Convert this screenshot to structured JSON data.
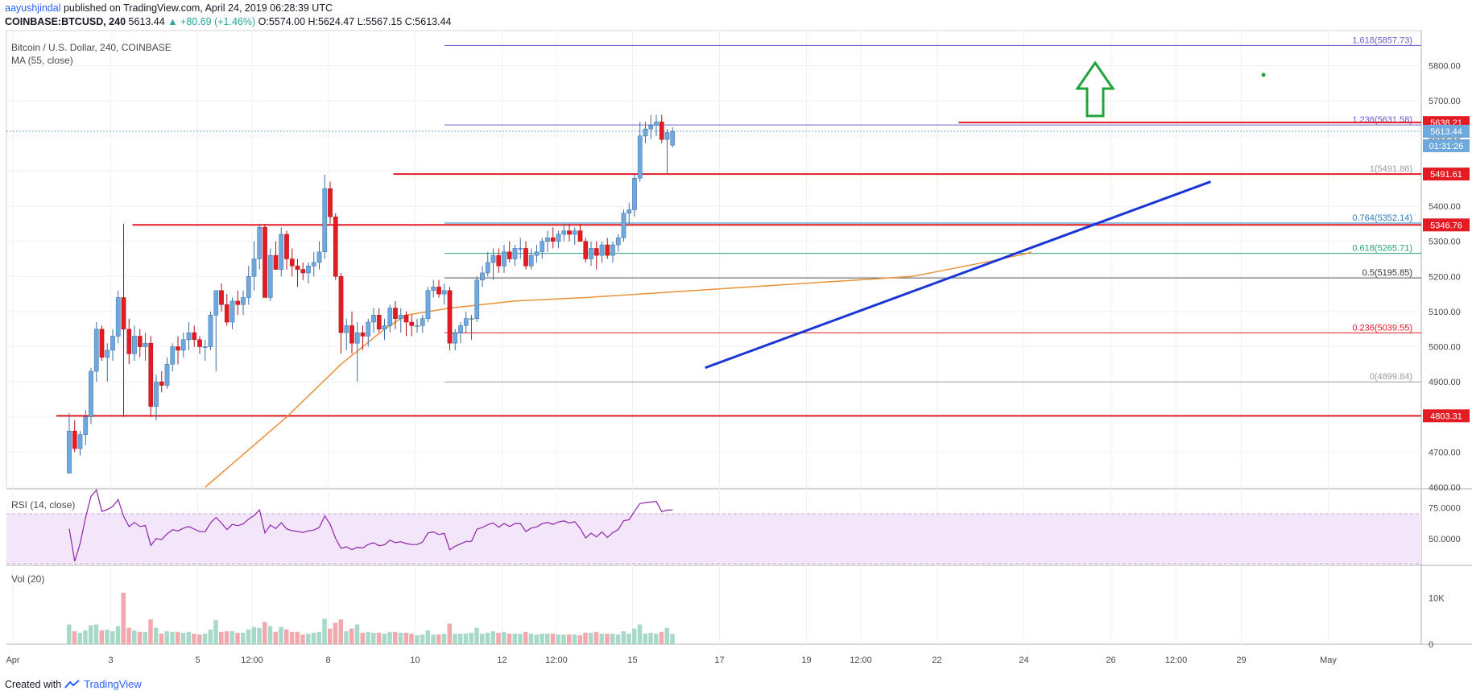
{
  "header": {
    "author": "aayushjindal",
    "published": "published on TradingView.com, April 24, 2019 06:28:39 UTC",
    "symbol": "COINBASE:BTCUSD, 240",
    "last": "5613.44",
    "change": "▲ +80.69 (+1.46%)",
    "o_label": "O:",
    "o": "5574.00",
    "h_label": "H:",
    "h": "5624.47",
    "l_label": "L:",
    "l": "5567.15",
    "c_label": "C:",
    "c": "5613.44"
  },
  "main_legend": {
    "title": "Bitcoin / U.S. Dollar, 240, COINBASE",
    "ma": "MA (55, close)"
  },
  "rsi_legend": "RSI (14, close)",
  "vol_legend": "Vol (20)",
  "footer": {
    "created": "Created with",
    "brand": "TradingView"
  },
  "colors": {
    "up": "#6fa8dc",
    "down": "#e31b23",
    "ma": "#e8913a",
    "trend": "#1a35d6",
    "resistance": "#e31b23",
    "fib": "#9b9b9b",
    "arrow": "#21a33a",
    "rsi": "#8e24aa"
  },
  "chart_data": {
    "type": "candlestick",
    "timeframe": "240",
    "price_axis": {
      "ylim": [
        4600,
        5900
      ],
      "ticks": [
        4600,
        4700,
        4800,
        4900,
        5000,
        5100,
        5200,
        5300,
        5400,
        5500,
        5600,
        5700,
        5800
      ],
      "tick_labels": [
        "4600.00",
        "4700.00",
        "4800.00",
        "4900.00",
        "5000.00",
        "5100.00",
        "5200.00",
        "5300.00",
        "5400.00",
        "5500.00",
        "5600.00",
        "5700.00",
        "5800.00"
      ]
    },
    "x_axis": {
      "tick_labels": [
        "Apr",
        "3",
        "5",
        "12:00",
        "8",
        "10",
        "12",
        "12:00",
        "15",
        "17",
        "19",
        "12:00",
        "22",
        "24",
        "26",
        "12:00",
        "29",
        "May"
      ],
      "tick_index": [
        0,
        18,
        34,
        44,
        58,
        74,
        90,
        100,
        114,
        130,
        146,
        156,
        170,
        186,
        202,
        214,
        226,
        242
      ]
    },
    "candles": [
      [
        4640,
        4810,
        4640,
        4760
      ],
      [
        4760,
        4790,
        4700,
        4710
      ],
      [
        4710,
        4760,
        4690,
        4750
      ],
      [
        4750,
        4820,
        4720,
        4800
      ],
      [
        4800,
        4940,
        4780,
        4930
      ],
      [
        4930,
        5070,
        4900,
        5050
      ],
      [
        5050,
        5060,
        4960,
        4970
      ],
      [
        4970,
        5010,
        4900,
        4990
      ],
      [
        4990,
        5050,
        4960,
        5030
      ],
      [
        5030,
        5160,
        5010,
        5140
      ],
      [
        5140,
        5350,
        4800,
        5050
      ],
      [
        5050,
        5080,
        4950,
        4980
      ],
      [
        4980,
        5060,
        4960,
        5030
      ],
      [
        5030,
        5050,
        4970,
        5000
      ],
      [
        5000,
        5040,
        4960,
        5010
      ],
      [
        5010,
        5030,
        4800,
        4830
      ],
      [
        4830,
        4920,
        4790,
        4900
      ],
      [
        4900,
        4930,
        4870,
        4890
      ],
      [
        4890,
        4970,
        4880,
        4950
      ],
      [
        4950,
        5010,
        4930,
        5000
      ],
      [
        5000,
        5030,
        4950,
        4990
      ],
      [
        4990,
        5040,
        4970,
        5020
      ],
      [
        5020,
        5070,
        4990,
        5040
      ],
      [
        5040,
        5060,
        5000,
        5020
      ],
      [
        5020,
        5030,
        4980,
        5000
      ],
      [
        5000,
        5020,
        4960,
        5000
      ],
      [
        5000,
        5100,
        4990,
        5090
      ],
      [
        5090,
        5150,
        4930,
        5160
      ],
      [
        5160,
        5180,
        5100,
        5120
      ],
      [
        5120,
        5150,
        5060,
        5070
      ],
      [
        5070,
        5140,
        5050,
        5130
      ],
      [
        5130,
        5160,
        5090,
        5120
      ],
      [
        5120,
        5160,
        5090,
        5140
      ],
      [
        5140,
        5230,
        5120,
        5200
      ],
      [
        5200,
        5300,
        5160,
        5250
      ],
      [
        5250,
        5350,
        5220,
        5340
      ],
      [
        5340,
        5350,
        5150,
        5140
      ],
      [
        5140,
        5280,
        5130,
        5260
      ],
      [
        5260,
        5300,
        5220,
        5220
      ],
      [
        5220,
        5340,
        5200,
        5320
      ],
      [
        5320,
        5330,
        5220,
        5250
      ],
      [
        5250,
        5280,
        5200,
        5230
      ],
      [
        5230,
        5250,
        5170,
        5220
      ],
      [
        5220,
        5240,
        5190,
        5210
      ],
      [
        5210,
        5240,
        5180,
        5230
      ],
      [
        5230,
        5270,
        5200,
        5240
      ],
      [
        5240,
        5300,
        5220,
        5270
      ],
      [
        5270,
        5490,
        5250,
        5450
      ],
      [
        5450,
        5470,
        5350,
        5370
      ],
      [
        5370,
        5380,
        5190,
        5200
      ],
      [
        5200,
        5210,
        4980,
        5040
      ],
      [
        5040,
        5080,
        4990,
        5060
      ],
      [
        5060,
        5100,
        4980,
        5010
      ],
      [
        5010,
        5070,
        4900,
        5040
      ],
      [
        5040,
        5060,
        4990,
        5030
      ],
      [
        5030,
        5080,
        5000,
        5070
      ],
      [
        5070,
        5110,
        5040,
        5090
      ],
      [
        5090,
        5110,
        5040,
        5050
      ],
      [
        5050,
        5080,
        5020,
        5060
      ],
      [
        5060,
        5120,
        5040,
        5110
      ],
      [
        5110,
        5130,
        5050,
        5080
      ],
      [
        5080,
        5110,
        5040,
        5090
      ],
      [
        5090,
        5100,
        5030,
        5070
      ],
      [
        5070,
        5090,
        5030,
        5060
      ],
      [
        5060,
        5080,
        5040,
        5060
      ],
      [
        5060,
        5090,
        5040,
        5080
      ],
      [
        5080,
        5170,
        5070,
        5160
      ],
      [
        5160,
        5190,
        5140,
        5170
      ],
      [
        5170,
        5190,
        5140,
        5150
      ],
      [
        5150,
        5180,
        5120,
        5160
      ],
      [
        5160,
        5170,
        4990,
        5010
      ],
      [
        5010,
        5050,
        4990,
        5040
      ],
      [
        5040,
        5070,
        5010,
        5060
      ],
      [
        5060,
        5100,
        5040,
        5080
      ],
      [
        5080,
        5090,
        5020,
        5080
      ],
      [
        5080,
        5200,
        5070,
        5190
      ],
      [
        5190,
        5230,
        5170,
        5210
      ],
      [
        5210,
        5270,
        5200,
        5240
      ],
      [
        5240,
        5280,
        5190,
        5260
      ],
      [
        5260,
        5280,
        5210,
        5230
      ],
      [
        5230,
        5290,
        5210,
        5270
      ],
      [
        5270,
        5300,
        5240,
        5250
      ],
      [
        5250,
        5290,
        5230,
        5280
      ],
      [
        5280,
        5310,
        5250,
        5280
      ],
      [
        5280,
        5300,
        5220,
        5230
      ],
      [
        5230,
        5280,
        5220,
        5260
      ],
      [
        5260,
        5290,
        5240,
        5270
      ],
      [
        5270,
        5310,
        5250,
        5300
      ],
      [
        5300,
        5330,
        5270,
        5310
      ],
      [
        5310,
        5340,
        5280,
        5300
      ],
      [
        5300,
        5330,
        5280,
        5320
      ],
      [
        5320,
        5350,
        5300,
        5330
      ],
      [
        5330,
        5350,
        5300,
        5320
      ],
      [
        5320,
        5340,
        5290,
        5330
      ],
      [
        5330,
        5350,
        5310,
        5300
      ],
      [
        5300,
        5310,
        5240,
        5250
      ],
      [
        5250,
        5300,
        5230,
        5280
      ],
      [
        5280,
        5300,
        5220,
        5260
      ],
      [
        5260,
        5300,
        5240,
        5290
      ],
      [
        5290,
        5310,
        5250,
        5260
      ],
      [
        5260,
        5300,
        5240,
        5290
      ],
      [
        5290,
        5320,
        5270,
        5310
      ],
      [
        5310,
        5390,
        5300,
        5380
      ],
      [
        5380,
        5410,
        5350,
        5390
      ],
      [
        5390,
        5490,
        5370,
        5480
      ],
      [
        5480,
        5640,
        5470,
        5600
      ],
      [
        5600,
        5640,
        5580,
        5620
      ],
      [
        5620,
        5660,
        5590,
        5630
      ],
      [
        5630,
        5660,
        5600,
        5640
      ],
      [
        5640,
        5660,
        5580,
        5590
      ],
      [
        5590,
        5620,
        5490,
        5610
      ],
      [
        5574,
        5624.47,
        5567.15,
        5613.44
      ]
    ],
    "ma55": [
      [
        25,
        4600
      ],
      [
        40,
        4800
      ],
      [
        50,
        4950
      ],
      [
        58,
        5050
      ],
      [
        62,
        5090
      ],
      [
        70,
        5110
      ],
      [
        82,
        5130
      ],
      [
        95,
        5140
      ],
      [
        105,
        5150
      ],
      [
        115,
        5160
      ],
      [
        125,
        5170
      ],
      [
        135,
        5180
      ],
      [
        145,
        5190
      ],
      [
        155,
        5200
      ],
      [
        160,
        5215
      ],
      [
        165,
        5230
      ],
      [
        170,
        5245
      ],
      [
        173,
        5255
      ],
      [
        176,
        5265
      ],
      [
        177,
        5270
      ]
    ],
    "rsi": {
      "ylim": [
        30,
        90
      ],
      "ticks": [
        50,
        75
      ],
      "tick_labels": [
        "50.0000",
        "75.0000"
      ],
      "band": [
        30,
        70
      ],
      "last": 75
    },
    "volume": {
      "ylim": [
        0,
        17000
      ],
      "ticks": [
        0,
        10000
      ],
      "tick_labels": [
        "0",
        "10K"
      ]
    },
    "levels": [
      {
        "label": "1.618(5857.73)",
        "value": 5857.73,
        "kind": "fib-ext"
      },
      {
        "label": "1.236(5631.58)",
        "value": 5631.58,
        "kind": "fib-ext"
      },
      {
        "label": "1(5491.86)",
        "value": 5491.86,
        "kind": "fib"
      },
      {
        "label": "0.764(5352.14)",
        "value": 5352.14,
        "kind": "fib"
      },
      {
        "label": "0.618(5265.71)",
        "value": 5265.71,
        "kind": "fib"
      },
      {
        "label": "0.5(5195.85)",
        "value": 5195.85,
        "kind": "fib"
      },
      {
        "label": "0.236(5039.55)",
        "value": 5039.55,
        "kind": "fib"
      },
      {
        "label": "0(4899.84)",
        "value": 4899.84,
        "kind": "fib"
      }
    ],
    "price_tags": [
      {
        "label": "5638.21",
        "value": 5638.21,
        "color": "#e31b23"
      },
      {
        "label": "5613.44",
        "value": 5613.44,
        "color": "#6fa8dc"
      },
      {
        "label": "01:31:26",
        "value": 5590,
        "color": "#6fa8dc"
      },
      {
        "label": "5491.61",
        "value": 5491.61,
        "color": "#e31b23"
      },
      {
        "label": "5346.76",
        "value": 5346.76,
        "color": "#e31b23"
      },
      {
        "label": "4803.31",
        "value": 4803.31,
        "color": "#e31b23"
      }
    ],
    "resistance_lines": [
      {
        "value": 5638.21,
        "from": 174,
        "to": 260
      },
      {
        "value": 5491.61,
        "from": 70,
        "to": 260
      },
      {
        "value": 5346.76,
        "from": 22,
        "to": 260
      },
      {
        "value": 4803.31,
        "from": 8,
        "to": 260
      }
    ],
    "trendline": {
      "from": [
        117,
        4940
      ],
      "to": [
        210,
        5470
      ]
    },
    "annotation": "up-arrow"
  }
}
